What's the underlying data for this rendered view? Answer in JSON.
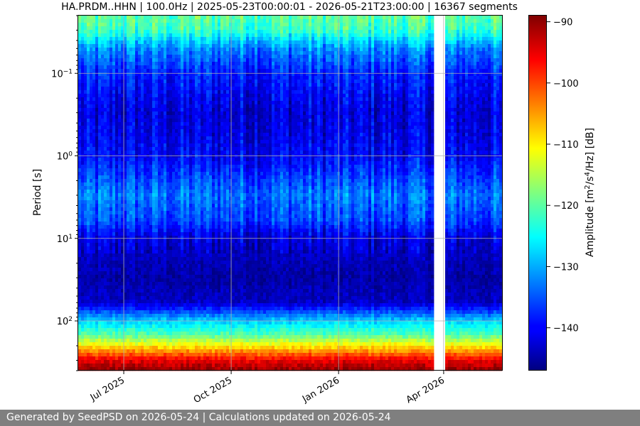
{
  "chart_data": {
    "type": "heatmap",
    "title": "HA.PRDM..HHN | 100.0Hz | 2025-05-23T00:00:01 - 2026-05-21T23:00:00 | 16367 segments",
    "ylabel": "Period [s]",
    "y_scale": "log",
    "y_inverted": true,
    "ylim_period_s": [
      0.02,
      400
    ],
    "xlim_dates": [
      "2025-05-23",
      "2026-05-21"
    ],
    "x_ticks": [
      {
        "date": "2025-07-01",
        "label": "Jul 2025"
      },
      {
        "date": "2025-10-01",
        "label": "Oct 2025"
      },
      {
        "date": "2026-01-01",
        "label": "Jan 2026"
      },
      {
        "date": "2026-04-01",
        "label": "Apr 2026"
      }
    ],
    "y_ticks": [
      {
        "value": 0.1,
        "base": "10",
        "exp": "−1"
      },
      {
        "value": 1,
        "base": "10",
        "exp": "0"
      },
      {
        "value": 10,
        "base": "10",
        "exp": "1"
      },
      {
        "value": 100,
        "base": "10",
        "exp": "2"
      }
    ],
    "grid": true,
    "colormap": "jet",
    "data_gap": [
      "2026-03-25",
      "2026-04-02"
    ],
    "colorbar": {
      "label_prefix": "Amplitude [m",
      "label_sup1": "2",
      "label_mid": "/s",
      "label_sup2": "4",
      "label_suffix": "/Hz] [dB]",
      "range_db": [
        -147,
        -89
      ],
      "ticks": [
        -90,
        -100,
        -110,
        -120,
        -130,
        -140
      ],
      "tick_labels": [
        "−90",
        "−100",
        "−110",
        "−120",
        "−130",
        "−140"
      ]
    },
    "psd_profile_db": [
      {
        "period_s": 0.02,
        "db": -120
      },
      {
        "period_s": 0.03,
        "db": -122
      },
      {
        "period_s": 0.05,
        "db": -132
      },
      {
        "period_s": 0.1,
        "db": -138
      },
      {
        "period_s": 0.3,
        "db": -142
      },
      {
        "period_s": 1,
        "db": -140
      },
      {
        "period_s": 3,
        "db": -133
      },
      {
        "period_s": 6,
        "db": -136
      },
      {
        "period_s": 10,
        "db": -142
      },
      {
        "period_s": 30,
        "db": -145
      },
      {
        "period_s": 60,
        "db": -143
      },
      {
        "period_s": 100,
        "db": -128
      },
      {
        "period_s": 150,
        "db": -120
      },
      {
        "period_s": 200,
        "db": -110
      },
      {
        "period_s": 300,
        "db": -95
      },
      {
        "period_s": 400,
        "db": -90
      }
    ]
  },
  "footer": {
    "text": "Generated by SeedPSD on 2026-05-24 | Calculations updated on 2026-05-24"
  }
}
